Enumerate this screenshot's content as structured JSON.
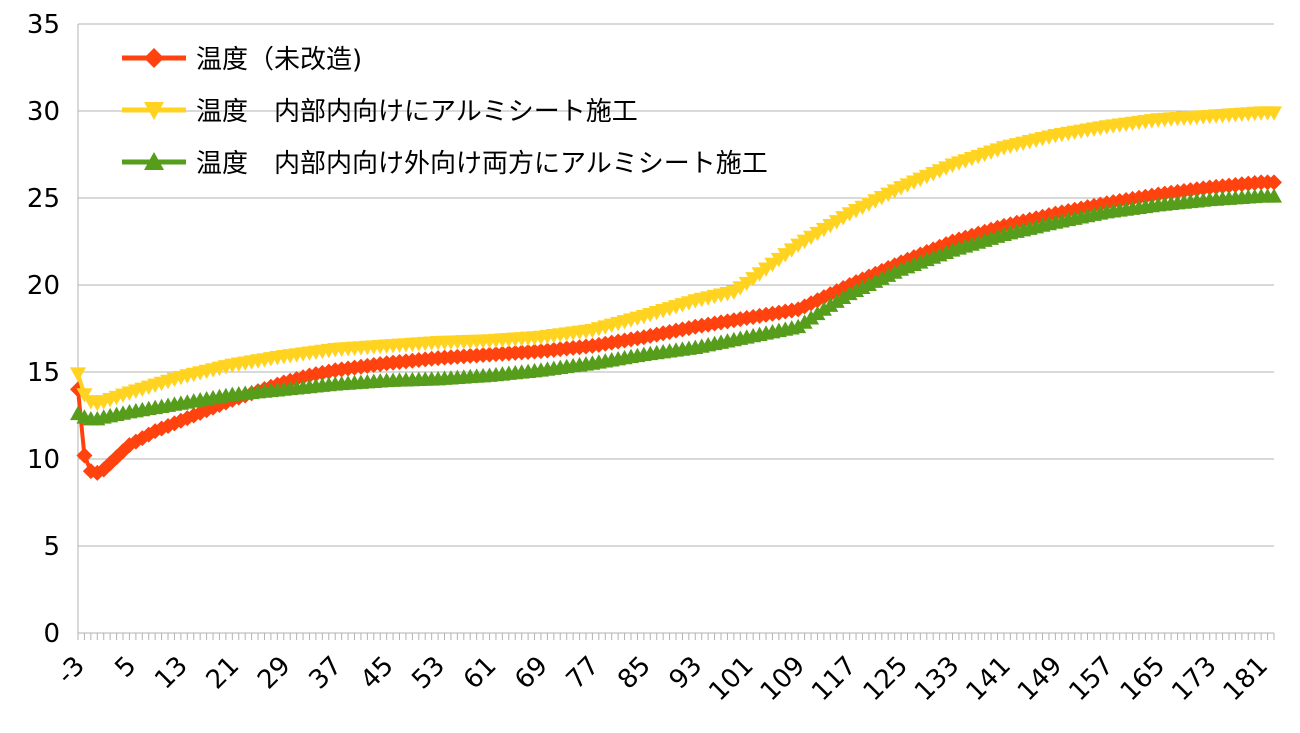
{
  "chart_data": {
    "type": "line",
    "x_start": -3,
    "x_end": 183,
    "x_step": 1,
    "x_tick_labels": [
      "-3",
      "5",
      "13",
      "21",
      "29",
      "37",
      "45",
      "53",
      "61",
      "69",
      "77",
      "85",
      "93",
      "101",
      "109",
      "117",
      "125",
      "133",
      "141",
      "149",
      "157",
      "165",
      "173",
      "181"
    ],
    "ylim": [
      0,
      35
    ],
    "y_ticks": [
      0,
      5,
      10,
      15,
      20,
      25,
      30,
      35
    ],
    "grid": "horizontal",
    "legend_position": "top-left",
    "series": [
      {
        "name": "温度（未改造)",
        "color": "#ff420e",
        "marker": "diamond",
        "anchors": [
          [
            -3,
            14.0
          ],
          [
            -2,
            10.2
          ],
          [
            -1,
            9.3
          ],
          [
            0,
            9.2
          ],
          [
            1,
            9.4
          ],
          [
            3,
            10.1
          ],
          [
            5,
            10.8
          ],
          [
            9,
            11.6
          ],
          [
            13,
            12.2
          ],
          [
            17,
            12.8
          ],
          [
            21,
            13.4
          ],
          [
            25,
            13.9
          ],
          [
            29,
            14.4
          ],
          [
            33,
            14.8
          ],
          [
            37,
            15.1
          ],
          [
            45,
            15.5
          ],
          [
            53,
            15.8
          ],
          [
            61,
            16.0
          ],
          [
            69,
            16.2
          ],
          [
            77,
            16.5
          ],
          [
            85,
            17.0
          ],
          [
            93,
            17.6
          ],
          [
            101,
            18.1
          ],
          [
            109,
            18.6
          ],
          [
            113,
            19.3
          ],
          [
            117,
            20.0
          ],
          [
            125,
            21.3
          ],
          [
            133,
            22.5
          ],
          [
            141,
            23.4
          ],
          [
            149,
            24.1
          ],
          [
            157,
            24.7
          ],
          [
            165,
            25.2
          ],
          [
            173,
            25.6
          ],
          [
            181,
            25.9
          ],
          [
            183,
            25.9
          ]
        ]
      },
      {
        "name": "温度　内部内向けにアルミシート施工",
        "color": "#ffd320",
        "marker": "triangle-down",
        "anchors": [
          [
            -3,
            14.9
          ],
          [
            -2,
            13.7
          ],
          [
            -1,
            13.3
          ],
          [
            0,
            13.2
          ],
          [
            1,
            13.3
          ],
          [
            5,
            13.8
          ],
          [
            13,
            14.7
          ],
          [
            21,
            15.4
          ],
          [
            29,
            15.9
          ],
          [
            37,
            16.3
          ],
          [
            45,
            16.5
          ],
          [
            53,
            16.7
          ],
          [
            61,
            16.8
          ],
          [
            69,
            17.0
          ],
          [
            77,
            17.4
          ],
          [
            85,
            18.2
          ],
          [
            93,
            19.1
          ],
          [
            99,
            19.6
          ],
          [
            101,
            20.1
          ],
          [
            109,
            22.3
          ],
          [
            117,
            24.1
          ],
          [
            125,
            25.6
          ],
          [
            133,
            26.9
          ],
          [
            141,
            27.9
          ],
          [
            149,
            28.6
          ],
          [
            157,
            29.1
          ],
          [
            165,
            29.5
          ],
          [
            173,
            29.7
          ],
          [
            181,
            29.9
          ],
          [
            183,
            29.9
          ]
        ]
      },
      {
        "name": "温度　内部内向け外向け両方にアルミシート施工",
        "color": "#579d1c",
        "marker": "triangle-up",
        "anchors": [
          [
            -3,
            12.6
          ],
          [
            -2,
            12.4
          ],
          [
            -1,
            12.3
          ],
          [
            0,
            12.3
          ],
          [
            1,
            12.4
          ],
          [
            5,
            12.7
          ],
          [
            13,
            13.2
          ],
          [
            21,
            13.7
          ],
          [
            29,
            14.0
          ],
          [
            37,
            14.3
          ],
          [
            45,
            14.5
          ],
          [
            53,
            14.6
          ],
          [
            61,
            14.8
          ],
          [
            69,
            15.1
          ],
          [
            77,
            15.5
          ],
          [
            85,
            16.0
          ],
          [
            93,
            16.4
          ],
          [
            101,
            17.0
          ],
          [
            109,
            17.6
          ],
          [
            113,
            18.6
          ],
          [
            117,
            19.5
          ],
          [
            125,
            20.9
          ],
          [
            133,
            22.0
          ],
          [
            141,
            22.9
          ],
          [
            149,
            23.6
          ],
          [
            157,
            24.2
          ],
          [
            165,
            24.6
          ],
          [
            173,
            24.9
          ],
          [
            181,
            25.1
          ],
          [
            183,
            25.1
          ]
        ]
      }
    ]
  }
}
